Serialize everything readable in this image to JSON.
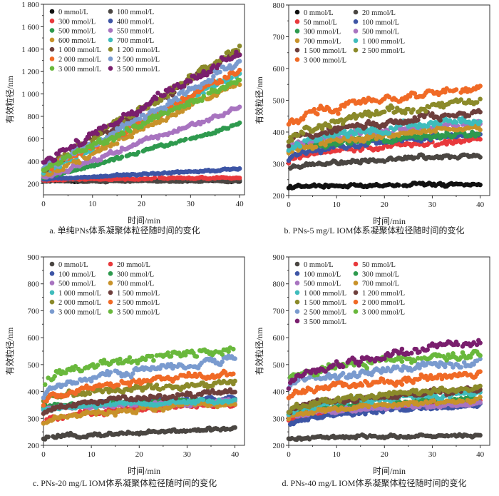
{
  "chart_data": [
    {
      "id": "a",
      "type": "scatter",
      "title": "",
      "caption": "a. 单纯PNs体系凝聚体粒径随时间的变化",
      "xlabel": "时间/min",
      "ylabel": "有效粒径/nm",
      "xlim": [
        0,
        41
      ],
      "ylim": [
        100,
        1800
      ],
      "xticks": [
        0,
        10,
        20,
        30,
        40
      ],
      "yticks": [
        200,
        400,
        600,
        800,
        1000,
        1200,
        1400,
        1600,
        1800
      ],
      "ytick_labels": [
        "200",
        "400",
        "600",
        "800",
        "1 000",
        "1 200",
        "1 400",
        "1 600",
        "1 800"
      ],
      "legend_position": "top-left",
      "legend_columns": 2,
      "series": [
        {
          "name": "0 mmol/L",
          "color": "#111111",
          "start": 225,
          "end": 225,
          "noise": 8
        },
        {
          "name": "100 mmol/L",
          "color": "#4a4642",
          "start": 225,
          "end": 225,
          "noise": 10
        },
        {
          "name": "300 mmol/L",
          "color": "#e8393c",
          "start": 235,
          "end": 255,
          "noise": 10
        },
        {
          "name": "400 mmol/L",
          "color": "#3d55a5",
          "start": 240,
          "end": 330,
          "noise": 10
        },
        {
          "name": "500 mmol/L",
          "color": "#2e9a4e",
          "start": 250,
          "end": 720,
          "noise": 18
        },
        {
          "name": "550 mmol/L",
          "color": "#a874c0",
          "start": 255,
          "end": 880,
          "noise": 25
        },
        {
          "name": "600 mmol/L",
          "color": "#c8922a",
          "start": 270,
          "end": 1100,
          "noise": 35
        },
        {
          "name": "700 mmol/L",
          "color": "#3fbcbc",
          "start": 300,
          "end": 1200,
          "noise": 40
        },
        {
          "name": "1 000 mmol/L",
          "color": "#6e3f3c",
          "start": 330,
          "end": 1380,
          "noise": 45
        },
        {
          "name": "1 200 mmol/L",
          "color": "#8b8a2a",
          "start": 320,
          "end": 1420,
          "noise": 45
        },
        {
          "name": "2 000 mmol/L",
          "color": "#f06a26",
          "start": 310,
          "end": 1200,
          "noise": 40
        },
        {
          "name": "2 500 mmol/L",
          "color": "#7a9bcf",
          "start": 320,
          "end": 1280,
          "noise": 45
        },
        {
          "name": "3 000 mmol/L",
          "color": "#69b83c",
          "start": 330,
          "end": 1120,
          "noise": 40
        },
        {
          "name": "3 500 mmol/L",
          "color": "#7a1f6e",
          "start": 390,
          "end": 1380,
          "noise": 45
        }
      ]
    },
    {
      "id": "b",
      "type": "scatter",
      "title": "",
      "caption": "b. PNs-5 mg/L IOM体系凝聚体粒径随时间的变化",
      "xlabel": "时间/min",
      "ylabel": "有效粒径/nm",
      "xlim": [
        0,
        42
      ],
      "ylim": [
        200,
        800
      ],
      "xticks": [
        0,
        10,
        20,
        30,
        40
      ],
      "yticks": [
        200,
        300,
        400,
        500,
        600,
        700,
        800
      ],
      "ytick_labels": [
        "200",
        "300",
        "400",
        "500",
        "600",
        "700",
        "800"
      ],
      "legend_position": "top-left",
      "legend_columns": 2,
      "series": [
        {
          "name": "0 mmol/L",
          "color": "#111111",
          "start": 225,
          "end": 235,
          "noise": 7
        },
        {
          "name": "20 mmol/L",
          "color": "#4a4642",
          "start": 278,
          "end": 330,
          "noise": 8
        },
        {
          "name": "50 mmol/L",
          "color": "#e8393c",
          "start": 305,
          "end": 375,
          "noise": 10
        },
        {
          "name": "100 mmol/L",
          "color": "#3d55a5",
          "start": 310,
          "end": 392,
          "noise": 10
        },
        {
          "name": "300 mmol/L",
          "color": "#2e9a4e",
          "start": 340,
          "end": 395,
          "noise": 12
        },
        {
          "name": "500 mmol/L",
          "color": "#a874c0",
          "start": 345,
          "end": 425,
          "noise": 12
        },
        {
          "name": "700 mmol/L",
          "color": "#c8922a",
          "start": 330,
          "end": 415,
          "noise": 12
        },
        {
          "name": "1 000 mmol/L",
          "color": "#3fbcbc",
          "start": 345,
          "end": 440,
          "noise": 14
        },
        {
          "name": "1 500 mmol/L",
          "color": "#6e3f3c",
          "start": 365,
          "end": 460,
          "noise": 14
        },
        {
          "name": "2 500 mmol/L",
          "color": "#8b8a2a",
          "start": 370,
          "end": 500,
          "noise": 16
        },
        {
          "name": "3 000 mmol/L",
          "color": "#f06a26",
          "start": 420,
          "end": 540,
          "noise": 16
        }
      ]
    },
    {
      "id": "c",
      "type": "scatter",
      "title": "",
      "caption": "c. PNs-20 mg/L IOM体系凝聚体粒径随时间的变化",
      "xlabel": "时间/min",
      "ylabel": "有效粒径/nm",
      "xlim": [
        0,
        42
      ],
      "ylim": [
        200,
        900
      ],
      "xticks": [
        0,
        10,
        20,
        30,
        40
      ],
      "yticks": [
        200,
        300,
        400,
        500,
        600,
        700,
        800,
        900
      ],
      "ytick_labels": [
        "200",
        "300",
        "400",
        "500",
        "600",
        "700",
        "800",
        "900"
      ],
      "legend_position": "top-left",
      "legend_columns": 2,
      "series": [
        {
          "name": "0 mmol/L",
          "color": "#4a4642",
          "start": 220,
          "end": 260,
          "noise": 8
        },
        {
          "name": "20 mmol/L",
          "color": "#e8393c",
          "start": 285,
          "end": 355,
          "noise": 12
        },
        {
          "name": "100 mmol/L",
          "color": "#3d55a5",
          "start": 330,
          "end": 375,
          "noise": 10
        },
        {
          "name": "300 mmol/L",
          "color": "#2e9a4e",
          "start": 340,
          "end": 365,
          "noise": 10
        },
        {
          "name": "500 mmol/L",
          "color": "#a874c0",
          "start": 335,
          "end": 360,
          "noise": 10
        },
        {
          "name": "700 mmol/L",
          "color": "#c8922a",
          "start": 275,
          "end": 360,
          "noise": 12
        },
        {
          "name": "1 000 mmol/L",
          "color": "#3fbcbc",
          "start": 330,
          "end": 365,
          "noise": 10
        },
        {
          "name": "1 500 mmol/L",
          "color": "#6e3f3c",
          "start": 320,
          "end": 400,
          "noise": 12
        },
        {
          "name": "2 000 mmol/L",
          "color": "#8b8a2a",
          "start": 365,
          "end": 430,
          "noise": 14
        },
        {
          "name": "2 500 mmol/L",
          "color": "#f06a26",
          "start": 360,
          "end": 470,
          "noise": 14
        },
        {
          "name": "3 000 mmol/L",
          "color": "#7a9bcf",
          "start": 380,
          "end": 520,
          "noise": 16
        },
        {
          "name": "3 500 mmol/L",
          "color": "#69b83c",
          "start": 430,
          "end": 560,
          "noise": 18
        }
      ]
    },
    {
      "id": "d",
      "type": "scatter",
      "title": "",
      "caption": "d. PNs-40 mg/L IOM体系凝聚体粒径随时间的变化",
      "xlabel": "时间/min",
      "ylabel": "有效粒径/nm",
      "xlim": [
        0,
        42
      ],
      "ylim": [
        200,
        900
      ],
      "xticks": [
        0,
        10,
        20,
        30,
        40
      ],
      "yticks": [
        200,
        300,
        400,
        500,
        600,
        700,
        800,
        900
      ],
      "ytick_labels": [
        "200",
        "300",
        "400",
        "500",
        "600",
        "700",
        "800",
        "900"
      ],
      "legend_position": "top-left",
      "legend_columns": 2,
      "series": [
        {
          "name": "0 mmol/L",
          "color": "#4a4642",
          "start": 222,
          "end": 238,
          "noise": 7
        },
        {
          "name": "50 mmol/L",
          "color": "#e8393c",
          "start": 285,
          "end": 365,
          "noise": 10
        },
        {
          "name": "100 mmol/L",
          "color": "#3d55a5",
          "start": 275,
          "end": 350,
          "noise": 10
        },
        {
          "name": "300 mmol/L",
          "color": "#2e9a4e",
          "start": 310,
          "end": 370,
          "noise": 10
        },
        {
          "name": "500 mmol/L",
          "color": "#a874c0",
          "start": 300,
          "end": 355,
          "noise": 10
        },
        {
          "name": "700 mmol/L",
          "color": "#c8922a",
          "start": 300,
          "end": 370,
          "noise": 10
        },
        {
          "name": "1 000 mmol/L",
          "color": "#3fbcbc",
          "start": 320,
          "end": 395,
          "noise": 12
        },
        {
          "name": "1 200 mmol/L",
          "color": "#6e3f3c",
          "start": 325,
          "end": 405,
          "noise": 12
        },
        {
          "name": "1 500 mmol/L",
          "color": "#8b8a2a",
          "start": 325,
          "end": 415,
          "noise": 12
        },
        {
          "name": "2 000 mmol/L",
          "color": "#f06a26",
          "start": 375,
          "end": 465,
          "noise": 16
        },
        {
          "name": "2 500 mmol/L",
          "color": "#7a9bcf",
          "start": 410,
          "end": 510,
          "noise": 16
        },
        {
          "name": "3 000 mmol/L",
          "color": "#69b83c",
          "start": 440,
          "end": 540,
          "noise": 18
        },
        {
          "name": "3 500 mmol/L",
          "color": "#7a1f6e",
          "start": 420,
          "end": 580,
          "noise": 18
        }
      ]
    }
  ]
}
